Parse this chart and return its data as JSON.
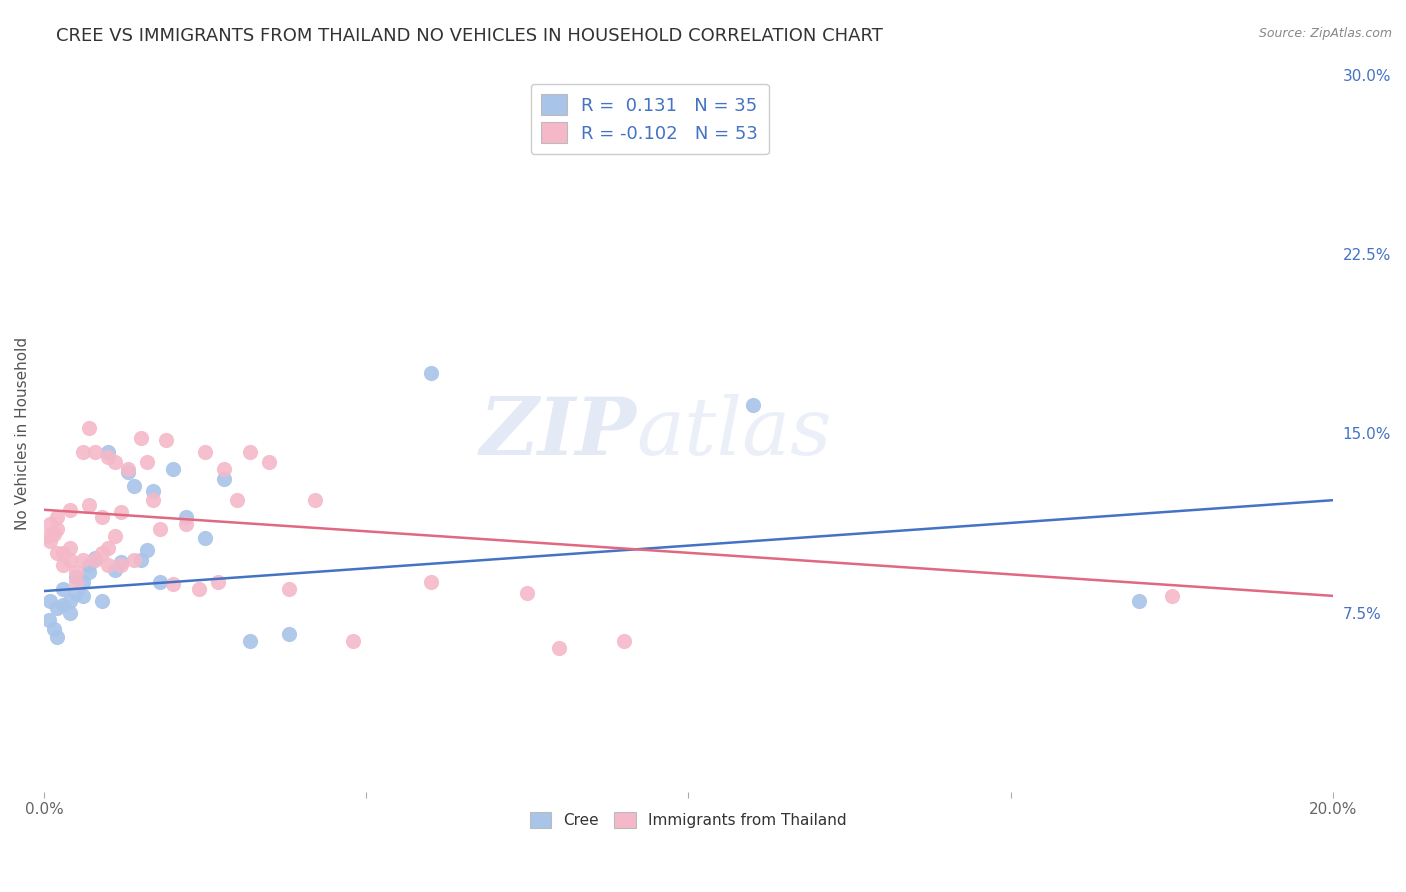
{
  "title": "CREE VS IMMIGRANTS FROM THAILAND NO VEHICLES IN HOUSEHOLD CORRELATION CHART",
  "source": "Source: ZipAtlas.com",
  "ylabel": "No Vehicles in Household",
  "watermark_zip": "ZIP",
  "watermark_atlas": "atlas",
  "xlim": [
    0.0,
    0.2
  ],
  "ylim": [
    0.0,
    0.3
  ],
  "xtick_vals": [
    0.0,
    0.05,
    0.1,
    0.15,
    0.2
  ],
  "xtick_labels": [
    "0.0%",
    "",
    "",
    "",
    "20.0%"
  ],
  "yticks_right": [
    0.075,
    0.15,
    0.225,
    0.3
  ],
  "ytick_labels_right": [
    "7.5%",
    "15.0%",
    "22.5%",
    "30.0%"
  ],
  "blue_color": "#a8c4e8",
  "pink_color": "#f4b8c8",
  "blue_line_color": "#4472c4",
  "pink_line_color": "#e06880",
  "legend_R_blue": "0.131",
  "legend_N_blue": "35",
  "legend_R_pink": "-0.102",
  "legend_N_pink": "53",
  "blue_scatter_x": [
    0.0008,
    0.001,
    0.0015,
    0.002,
    0.002,
    0.003,
    0.003,
    0.004,
    0.004,
    0.005,
    0.005,
    0.006,
    0.006,
    0.007,
    0.007,
    0.008,
    0.009,
    0.01,
    0.011,
    0.012,
    0.013,
    0.014,
    0.015,
    0.016,
    0.017,
    0.018,
    0.02,
    0.022,
    0.025,
    0.028,
    0.032,
    0.038,
    0.06,
    0.11,
    0.17
  ],
  "blue_scatter_y": [
    0.072,
    0.08,
    0.068,
    0.077,
    0.065,
    0.078,
    0.085,
    0.08,
    0.075,
    0.09,
    0.083,
    0.088,
    0.082,
    0.092,
    0.095,
    0.098,
    0.08,
    0.142,
    0.093,
    0.096,
    0.134,
    0.128,
    0.097,
    0.101,
    0.126,
    0.088,
    0.135,
    0.115,
    0.106,
    0.131,
    0.063,
    0.066,
    0.175,
    0.162,
    0.08
  ],
  "pink_scatter_x": [
    0.0005,
    0.001,
    0.001,
    0.0015,
    0.002,
    0.002,
    0.002,
    0.003,
    0.003,
    0.004,
    0.004,
    0.004,
    0.005,
    0.005,
    0.006,
    0.006,
    0.007,
    0.007,
    0.008,
    0.008,
    0.009,
    0.009,
    0.01,
    0.01,
    0.01,
    0.011,
    0.011,
    0.012,
    0.012,
    0.013,
    0.014,
    0.015,
    0.016,
    0.017,
    0.018,
    0.019,
    0.02,
    0.022,
    0.024,
    0.025,
    0.027,
    0.028,
    0.03,
    0.032,
    0.035,
    0.038,
    0.042,
    0.048,
    0.06,
    0.075,
    0.08,
    0.09,
    0.175
  ],
  "pink_scatter_y": [
    0.107,
    0.105,
    0.112,
    0.108,
    0.1,
    0.11,
    0.115,
    0.095,
    0.1,
    0.097,
    0.102,
    0.118,
    0.088,
    0.092,
    0.097,
    0.142,
    0.12,
    0.152,
    0.097,
    0.142,
    0.1,
    0.115,
    0.14,
    0.095,
    0.102,
    0.107,
    0.138,
    0.095,
    0.117,
    0.135,
    0.097,
    0.148,
    0.138,
    0.122,
    0.11,
    0.147,
    0.087,
    0.112,
    0.085,
    0.142,
    0.088,
    0.135,
    0.122,
    0.142,
    0.138,
    0.085,
    0.122,
    0.063,
    0.088,
    0.083,
    0.06,
    0.063,
    0.082
  ],
  "blue_trend_x": [
    0.0,
    0.2
  ],
  "blue_trend_y": [
    0.084,
    0.122
  ],
  "pink_trend_x": [
    0.0,
    0.2
  ],
  "pink_trend_y": [
    0.118,
    0.082
  ],
  "grid_color": "#dddddd",
  "bg_color": "#ffffff",
  "title_fontsize": 13,
  "label_fontsize": 11,
  "tick_fontsize": 11,
  "legend_fontsize": 13,
  "scatter_size": 120
}
